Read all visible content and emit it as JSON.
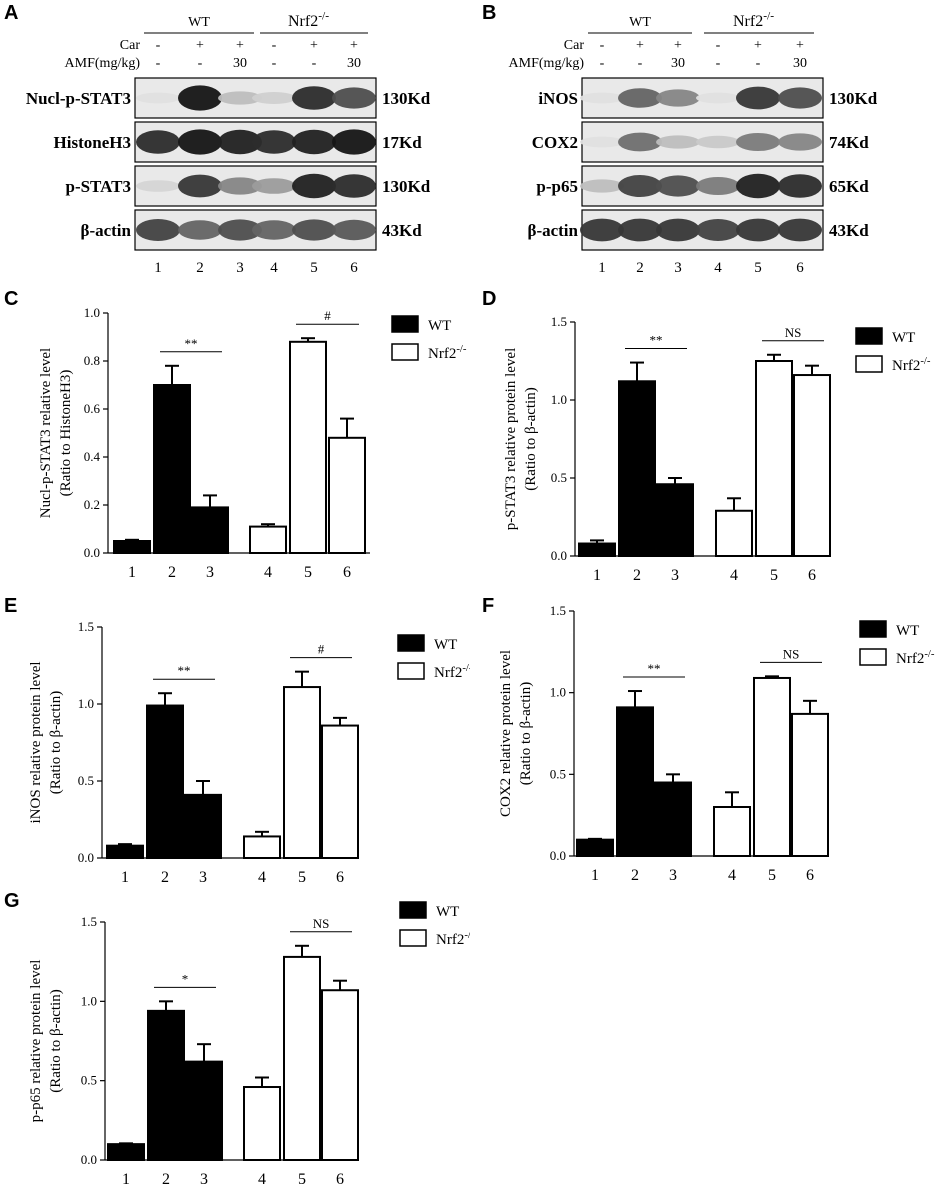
{
  "panels": {
    "A": {
      "letter": "A",
      "groups": [
        "WT",
        "Nrf2"
      ],
      "group_sup": "-/-",
      "row_labels": [
        "Car",
        "AMF(mg/kg)"
      ],
      "car": [
        "-",
        "+",
        "+",
        "-",
        "+",
        "+"
      ],
      "amf": [
        "-",
        "-",
        "30",
        "-",
        "-",
        "30"
      ],
      "blots": [
        {
          "name": "Nucl-p-STAT3",
          "size": "130Kd",
          "intensity": [
            0.05,
            0.95,
            0.2,
            0.12,
            0.85,
            0.7
          ]
        },
        {
          "name": "HistoneH3",
          "size": "17Kd",
          "intensity": [
            0.85,
            0.95,
            0.9,
            0.85,
            0.9,
            0.95
          ]
        },
        {
          "name": "p-STAT3",
          "size": "130Kd",
          "intensity": [
            0.1,
            0.8,
            0.45,
            0.35,
            0.9,
            0.85
          ]
        },
        {
          "name": "β-actin",
          "size": "43Kd",
          "intensity": [
            0.75,
            0.6,
            0.7,
            0.6,
            0.7,
            0.65
          ]
        }
      ],
      "lanes": [
        "1",
        "2",
        "3",
        "4",
        "5",
        "6"
      ]
    },
    "B": {
      "letter": "B",
      "groups": [
        "WT",
        "Nrf2"
      ],
      "group_sup": "-/-",
      "row_labels": [
        "Car",
        "AMF(mg/kg)"
      ],
      "car": [
        "-",
        "+",
        "+",
        "-",
        "+",
        "+"
      ],
      "amf": [
        "-",
        "-",
        "30",
        "-",
        "-",
        "30"
      ],
      "blots": [
        {
          "name": "iNOS",
          "size": "130Kd",
          "intensity": [
            0.05,
            0.6,
            0.45,
            0.05,
            0.8,
            0.7
          ]
        },
        {
          "name": "COX2",
          "size": "74Kd",
          "intensity": [
            0.05,
            0.55,
            0.2,
            0.15,
            0.5,
            0.45
          ]
        },
        {
          "name": "p-p65",
          "size": "65Kd",
          "intensity": [
            0.2,
            0.75,
            0.7,
            0.5,
            0.9,
            0.85
          ]
        },
        {
          "name": "β-actin",
          "size": "43Kd",
          "intensity": [
            0.8,
            0.8,
            0.8,
            0.75,
            0.8,
            0.8
          ]
        }
      ],
      "lanes": [
        "1",
        "2",
        "3",
        "4",
        "5",
        "6"
      ]
    }
  },
  "legend": {
    "wt": "WT",
    "ko": "Nrf2",
    "ko_sup": "-/-"
  },
  "chart_data": [
    {
      "panel": "C",
      "type": "bar",
      "categories": [
        "1",
        "2",
        "3",
        "4",
        "5",
        "6"
      ],
      "values": [
        0.05,
        0.7,
        0.19,
        0.11,
        0.88,
        0.48
      ],
      "errors": [
        0.005,
        0.08,
        0.05,
        0.01,
        0.015,
        0.08
      ],
      "ylabel_line1": "Nucl-p-STAT3 relative level",
      "ylabel_line2": "(Ratio to HistoneH3)",
      "ylim": [
        0,
        1.0
      ],
      "yticks": [
        "0.0",
        "0.2",
        "0.4",
        "0.6",
        "0.8",
        "1.0"
      ],
      "sig": [
        {
          "from": 2,
          "to": 3,
          "label": "**"
        },
        {
          "from": 5,
          "to": 6,
          "label": "#"
        }
      ]
    },
    {
      "panel": "D",
      "type": "bar",
      "categories": [
        "1",
        "2",
        "3",
        "4",
        "5",
        "6"
      ],
      "values": [
        0.08,
        1.12,
        0.46,
        0.29,
        1.25,
        1.16
      ],
      "errors": [
        0.02,
        0.12,
        0.04,
        0.08,
        0.04,
        0.06
      ],
      "ylabel_line1": "p-STAT3 relative protein level",
      "ylabel_line2": "(Ratio to β-actin)",
      "ylim": [
        0,
        1.5
      ],
      "yticks": [
        "0.0",
        "0.5",
        "1.0",
        "1.5"
      ],
      "sig": [
        {
          "from": 2,
          "to": 3,
          "label": "**"
        },
        {
          "from": 5,
          "to": 6,
          "label": "NS"
        }
      ]
    },
    {
      "panel": "E",
      "type": "bar",
      "categories": [
        "1",
        "2",
        "3",
        "4",
        "5",
        "6"
      ],
      "values": [
        0.08,
        0.99,
        0.41,
        0.14,
        1.11,
        0.86
      ],
      "errors": [
        0.01,
        0.08,
        0.09,
        0.03,
        0.1,
        0.05
      ],
      "ylabel_line1": "iNOS relative protein level",
      "ylabel_line2": "(Ratio to β-actin)",
      "ylim": [
        0,
        1.5
      ],
      "yticks": [
        "0.0",
        "0.5",
        "1.0",
        "1.5"
      ],
      "sig": [
        {
          "from": 2,
          "to": 3,
          "label": "**"
        },
        {
          "from": 5,
          "to": 6,
          "label": "#"
        }
      ]
    },
    {
      "panel": "F",
      "type": "bar",
      "categories": [
        "1",
        "2",
        "3",
        "4",
        "5",
        "6"
      ],
      "values": [
        0.1,
        0.91,
        0.45,
        0.3,
        1.09,
        0.87
      ],
      "errors": [
        0.005,
        0.1,
        0.05,
        0.09,
        0.01,
        0.08
      ],
      "ylabel_line1": "COX2 relative protein level",
      "ylabel_line2": "(Ratio to β-actin)",
      "ylim": [
        0,
        1.5
      ],
      "yticks": [
        "0.0",
        "0.5",
        "1.0",
        "1.5"
      ],
      "sig": [
        {
          "from": 2,
          "to": 3,
          "label": "**"
        },
        {
          "from": 5,
          "to": 6,
          "label": "NS"
        }
      ]
    },
    {
      "panel": "G",
      "type": "bar",
      "categories": [
        "1",
        "2",
        "3",
        "4",
        "5",
        "6"
      ],
      "values": [
        0.1,
        0.94,
        0.62,
        0.46,
        1.28,
        1.07
      ],
      "errors": [
        0.005,
        0.06,
        0.11,
        0.06,
        0.07,
        0.06
      ],
      "ylabel_line1": "p-p65 relative protein level",
      "ylabel_line2": "(Ratio to β-actin)",
      "ylim": [
        0,
        1.5
      ],
      "yticks": [
        "0.0",
        "0.5",
        "1.0",
        "1.5"
      ],
      "sig": [
        {
          "from": 2,
          "to": 3,
          "label": "*"
        },
        {
          "from": 5,
          "to": 6,
          "label": "NS"
        }
      ]
    }
  ]
}
